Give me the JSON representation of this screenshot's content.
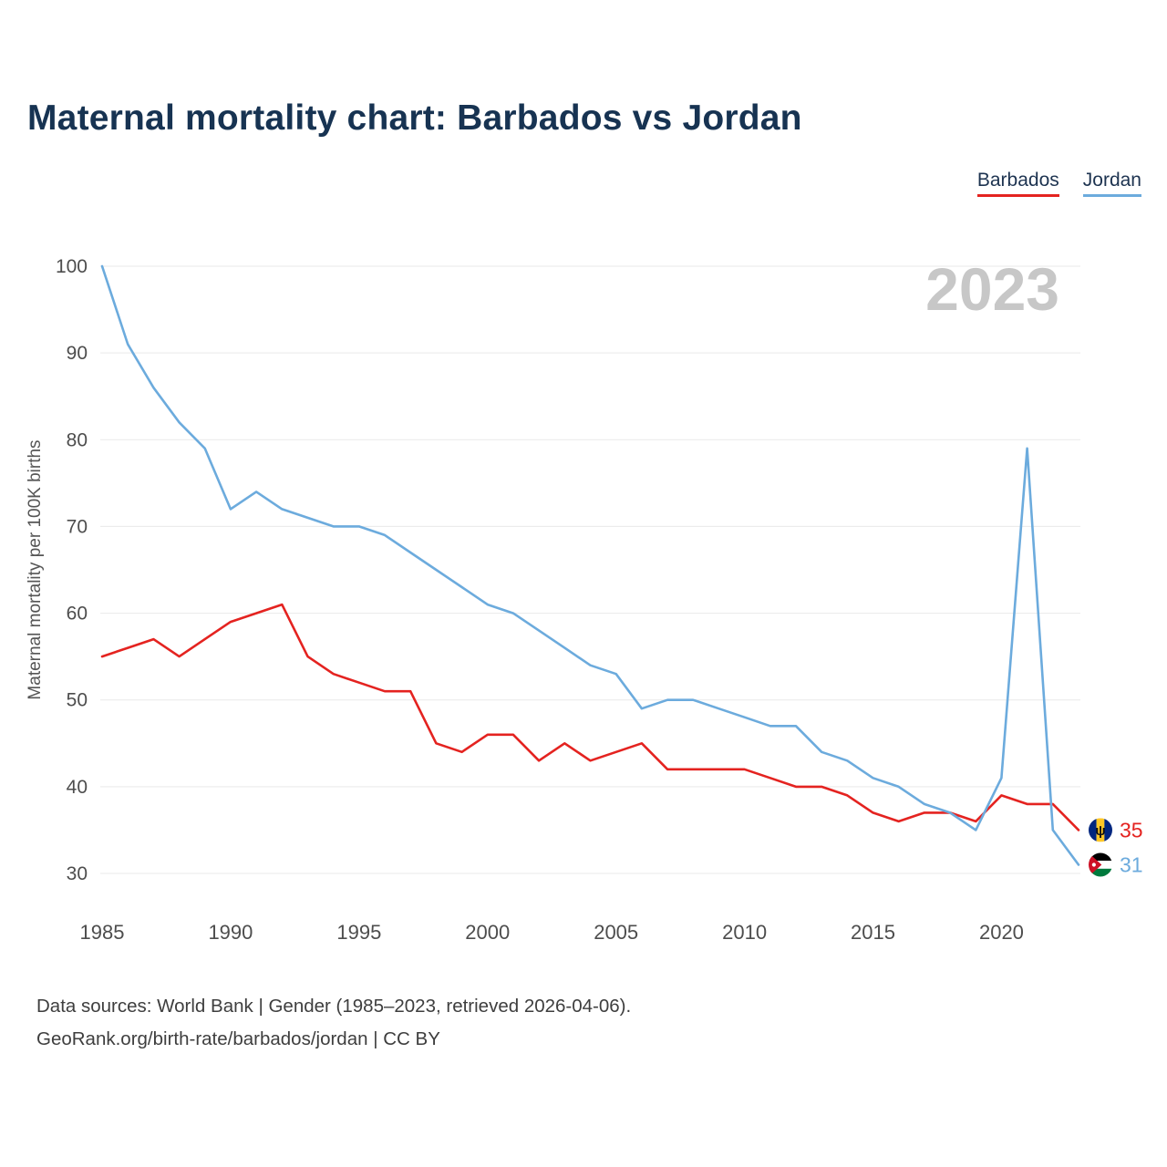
{
  "title": "Maternal mortality chart: Barbados vs Jordan",
  "legend": [
    {
      "label": "Barbados",
      "color": "#e42320"
    },
    {
      "label": "Jordan",
      "color": "#6cabdd"
    }
  ],
  "watermark": "2023",
  "footer": {
    "line1": "Data sources: World Bank | Gender (1985–2023, retrieved 2026-04-06).",
    "line2": "GeoRank.org/birth-rate/barbados/jordan | CC BY"
  },
  "chart_data": {
    "type": "line",
    "title": "Maternal mortality chart: Barbados vs Jordan",
    "xlabel": "",
    "ylabel": "Maternal mortality per 100K births",
    "ylim": [
      30,
      100
    ],
    "yticks": [
      30,
      40,
      50,
      60,
      70,
      80,
      90,
      100
    ],
    "xticks": [
      1985,
      1990,
      1995,
      2000,
      2005,
      2010,
      2015,
      2020
    ],
    "grid": true,
    "legend_position": "top-right",
    "watermark": "2023",
    "x": [
      1985,
      1986,
      1987,
      1988,
      1989,
      1990,
      1991,
      1992,
      1993,
      1994,
      1995,
      1996,
      1997,
      1998,
      1999,
      2000,
      2001,
      2002,
      2003,
      2004,
      2005,
      2006,
      2007,
      2008,
      2009,
      2010,
      2011,
      2012,
      2013,
      2014,
      2015,
      2016,
      2017,
      2018,
      2019,
      2020,
      2021,
      2022,
      2023
    ],
    "series": [
      {
        "name": "Barbados",
        "color": "#e42320",
        "flag_icon": "barbados-flag-icon",
        "end_label": 35,
        "values": [
          55,
          56,
          57,
          55,
          57,
          59,
          60,
          61,
          55,
          53,
          52,
          51,
          51,
          45,
          44,
          46,
          46,
          43,
          45,
          43,
          44,
          45,
          42,
          42,
          42,
          42,
          41,
          40,
          40,
          39,
          37,
          36,
          37,
          37,
          36,
          39,
          38,
          38,
          35
        ]
      },
      {
        "name": "Jordan",
        "color": "#6cabdd",
        "flag_icon": "jordan-flag-icon",
        "end_label": 31,
        "values": [
          100,
          91,
          86,
          82,
          79,
          72,
          74,
          72,
          71,
          70,
          70,
          69,
          67,
          65,
          63,
          61,
          60,
          58,
          56,
          54,
          53,
          49,
          50,
          50,
          49,
          48,
          47,
          47,
          44,
          43,
          41,
          40,
          38,
          37,
          35,
          41,
          79,
          35,
          31
        ]
      }
    ]
  }
}
